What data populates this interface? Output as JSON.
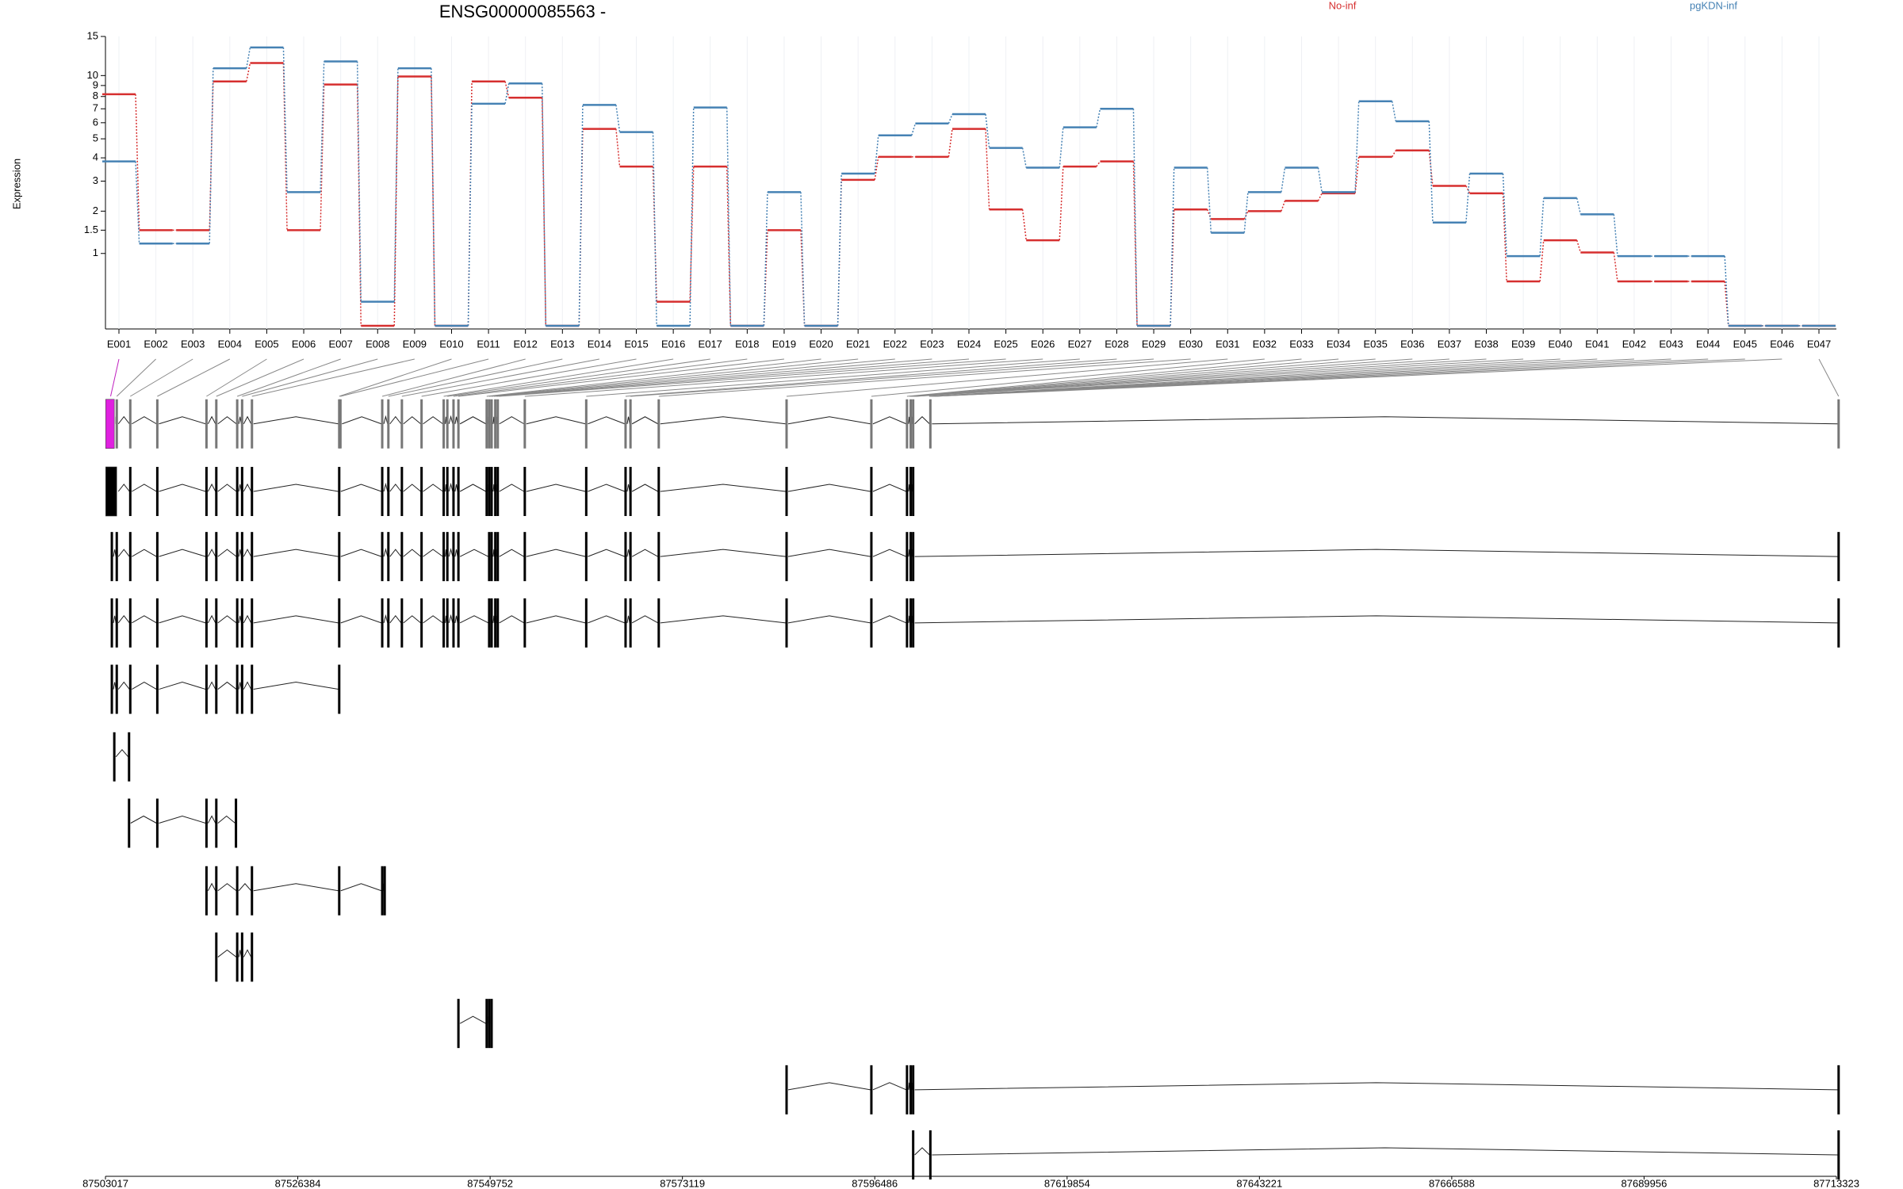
{
  "chart_data": {
    "type": "line",
    "title": "ENSG00000085563 -",
    "ylabel": "Expression",
    "yscale": "log1p",
    "ylim": [
      0,
      15
    ],
    "yticks": [
      1,
      1.5,
      2,
      3,
      4,
      5,
      6,
      7,
      8,
      9,
      10,
      15
    ],
    "grid": true,
    "categories": [
      "E001",
      "E002",
      "E003",
      "E004",
      "E005",
      "E006",
      "E007",
      "E008",
      "E009",
      "E010",
      "E011",
      "E012",
      "E013",
      "E014",
      "E015",
      "E016",
      "E017",
      "E018",
      "E019",
      "E020",
      "E021",
      "E022",
      "E023",
      "E024",
      "E025",
      "E026",
      "E027",
      "E028",
      "E029",
      "E030",
      "E031",
      "E032",
      "E033",
      "E034",
      "E035",
      "E036",
      "E037",
      "E038",
      "E039",
      "E040",
      "E041",
      "E042",
      "E043",
      "E044",
      "E045",
      "E046",
      "E047"
    ],
    "series": [
      {
        "name": "No-inf",
        "color": "#d62f2f",
        "values": [
          8.2,
          1.5,
          1.5,
          9.4,
          11.4,
          1.5,
          9.1,
          0,
          9.9,
          0,
          9.4,
          7.9,
          0,
          5.6,
          3.6,
          0.26,
          3.6,
          0,
          1.5,
          0,
          3.05,
          4.05,
          4.05,
          5.6,
          2.05,
          1.27,
          3.6,
          3.83,
          0,
          2.05,
          1.78,
          2.0,
          2.31,
          2.56,
          4.05,
          4.37,
          2.82,
          2.56,
          0.53,
          1.27,
          1.02,
          0.53,
          0.53,
          0.53,
          0,
          0,
          0
        ]
      },
      {
        "name": "pgKDN-inf",
        "color": "#4682b4",
        "values": [
          3.83,
          1.2,
          1.2,
          10.8,
          13.4,
          2.6,
          11.6,
          0.26,
          10.8,
          0,
          7.4,
          9.2,
          0,
          7.3,
          5.4,
          0,
          7.1,
          0,
          2.6,
          0,
          3.3,
          5.2,
          5.95,
          6.6,
          4.5,
          3.55,
          5.7,
          7.0,
          0,
          3.55,
          1.44,
          2.6,
          3.55,
          2.6,
          7.6,
          6.1,
          1.69,
          3.3,
          0.95,
          2.4,
          1.91,
          0.95,
          0.95,
          0.95,
          0,
          0,
          0
        ]
      }
    ],
    "xlim": [
      87503017,
      87713323
    ],
    "xticks": [
      87503017,
      87526384,
      87549752,
      87573119,
      87596486,
      87619854,
      87643221,
      87666588,
      87689956,
      87713323
    ]
  }
}
